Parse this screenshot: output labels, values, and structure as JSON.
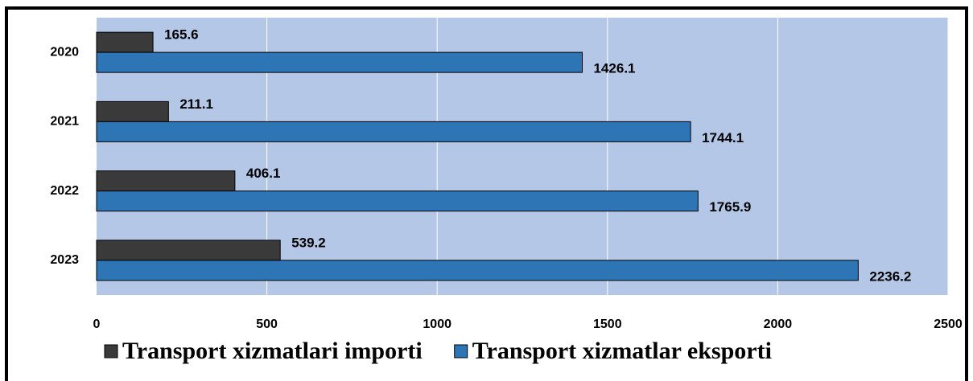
{
  "chart_data": {
    "type": "bar",
    "orientation": "horizontal",
    "categories": [
      "2020",
      "2021",
      "2022",
      "2023"
    ],
    "series": [
      {
        "name": "Transport xizmatlari importi",
        "color": "#3a3a3a",
        "values": [
          165.6,
          211.1,
          406.1,
          539.2
        ]
      },
      {
        "name": "Transport xizmatlar eksporti",
        "color": "#2e75b6",
        "values": [
          1426.1,
          1744.1,
          1765.9,
          2236.2
        ]
      }
    ],
    "xlim": [
      0,
      2500
    ],
    "xticks": [
      0,
      500,
      1000,
      1500,
      2000,
      2500
    ],
    "grid": true,
    "plot_background": "#b4c7e7",
    "legend": "bottom"
  }
}
